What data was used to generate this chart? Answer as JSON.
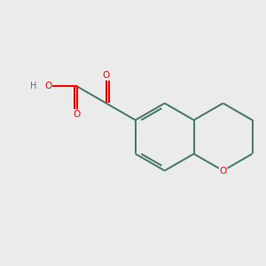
{
  "bg_color": "#ebebeb",
  "bond_color": "#4a7c6f",
  "oxygen_color": "#ff0000",
  "bond_width": 1.5,
  "dbo": 0.055,
  "figsize": [
    3.0,
    3.0
  ],
  "dpi": 100,
  "xlim": [
    0,
    10
  ],
  "ylim": [
    0,
    10
  ]
}
